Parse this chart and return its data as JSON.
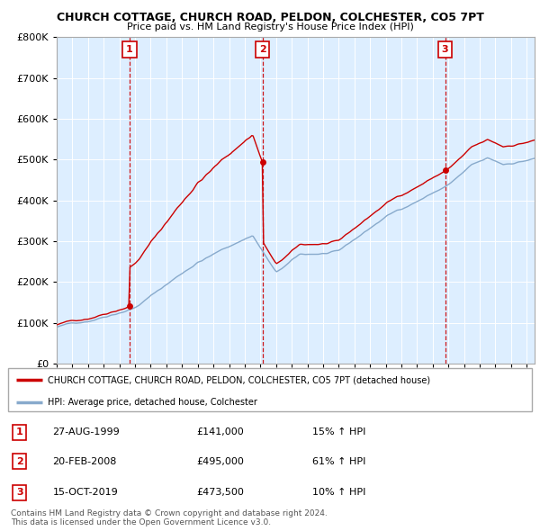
{
  "title": "CHURCH COTTAGE, CHURCH ROAD, PELDON, COLCHESTER, CO5 7PT",
  "subtitle": "Price paid vs. HM Land Registry's House Price Index (HPI)",
  "legend_line1": "CHURCH COTTAGE, CHURCH ROAD, PELDON, COLCHESTER, CO5 7PT (detached house)",
  "legend_line2": "HPI: Average price, detached house, Colchester",
  "footer1": "Contains HM Land Registry data © Crown copyright and database right 2024.",
  "footer2": "This data is licensed under the Open Government Licence v3.0.",
  "transactions": [
    {
      "num": 1,
      "date": "27-AUG-1999",
      "price": "£141,000",
      "hpi": "15% ↑ HPI",
      "year": 1999.65
    },
    {
      "num": 2,
      "date": "20-FEB-2008",
      "price": "£495,000",
      "hpi": "61% ↑ HPI",
      "year": 2008.13
    },
    {
      "num": 3,
      "date": "15-OCT-2019",
      "price": "£473,500",
      "hpi": "10% ↑ HPI",
      "year": 2019.79
    }
  ],
  "transaction_prices": [
    141000,
    495000,
    473500
  ],
  "price_color": "#cc0000",
  "hpi_color": "#88aacc",
  "bg_color": "#ddeeff",
  "ylim": [
    0,
    800000
  ],
  "xlim_start": 1995.0,
  "xlim_end": 2025.5
}
